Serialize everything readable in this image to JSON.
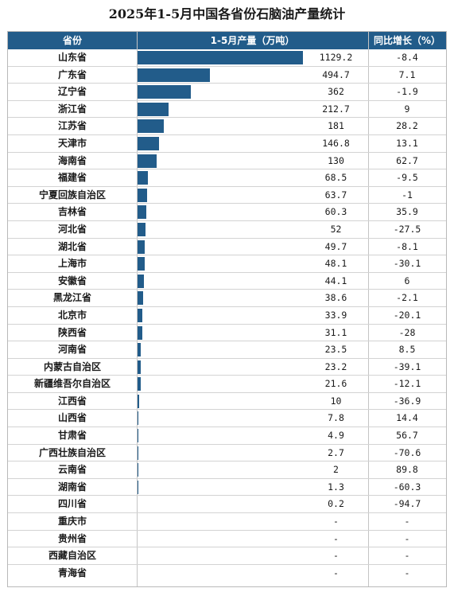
{
  "title": "2025年1-5月中国各省份石脑油产量统计",
  "header": {
    "province": "省份",
    "production": "1-5月产量（万吨）",
    "yoy": "同比增长（%）"
  },
  "colors": {
    "bar": "#225c8a",
    "header_bg": "#225c8a"
  },
  "chart_data": {
    "type": "table",
    "columns": [
      "省份",
      "1-5月产量（万吨）",
      "同比增长（%）"
    ],
    "rows": [
      {
        "province": "山东省",
        "value": "1129.2",
        "yoy": "-8.4"
      },
      {
        "province": "广东省",
        "value": "494.7",
        "yoy": "7.1"
      },
      {
        "province": "辽宁省",
        "value": "362",
        "yoy": "-1.9"
      },
      {
        "province": "浙江省",
        "value": "212.7",
        "yoy": "9"
      },
      {
        "province": "江苏省",
        "value": "181",
        "yoy": "28.2"
      },
      {
        "province": "天津市",
        "value": "146.8",
        "yoy": "13.1"
      },
      {
        "province": "海南省",
        "value": "130",
        "yoy": "62.7"
      },
      {
        "province": "福建省",
        "value": "68.5",
        "yoy": "-9.5"
      },
      {
        "province": "宁夏回族自治区",
        "value": "63.7",
        "yoy": "-1"
      },
      {
        "province": "吉林省",
        "value": "60.3",
        "yoy": "35.9"
      },
      {
        "province": "河北省",
        "value": "52",
        "yoy": "-27.5"
      },
      {
        "province": "湖北省",
        "value": "49.7",
        "yoy": "-8.1"
      },
      {
        "province": "上海市",
        "value": "48.1",
        "yoy": "-30.1"
      },
      {
        "province": "安徽省",
        "value": "44.1",
        "yoy": "6"
      },
      {
        "province": "黑龙江省",
        "value": "38.6",
        "yoy": "-2.1"
      },
      {
        "province": "北京市",
        "value": "33.9",
        "yoy": "-20.1"
      },
      {
        "province": "陕西省",
        "value": "31.1",
        "yoy": "-28"
      },
      {
        "province": "河南省",
        "value": "23.5",
        "yoy": "8.5"
      },
      {
        "province": "内蒙古自治区",
        "value": "23.2",
        "yoy": "-39.1"
      },
      {
        "province": "新疆维吾尔自治区",
        "value": "21.6",
        "yoy": "-12.1"
      },
      {
        "province": "江西省",
        "value": "10",
        "yoy": "-36.9"
      },
      {
        "province": "山西省",
        "value": "7.8",
        "yoy": "14.4"
      },
      {
        "province": "甘肃省",
        "value": "4.9",
        "yoy": "56.7"
      },
      {
        "province": "广西壮族自治区",
        "value": "2.7",
        "yoy": "-70.6"
      },
      {
        "province": "云南省",
        "value": "2",
        "yoy": "89.8"
      },
      {
        "province": "湖南省",
        "value": "1.3",
        "yoy": "-60.3"
      },
      {
        "province": "四川省",
        "value": "0.2",
        "yoy": "-94.7"
      },
      {
        "province": "重庆市",
        "value": "-",
        "yoy": "-"
      },
      {
        "province": "贵州省",
        "value": "-",
        "yoy": "-"
      },
      {
        "province": "西藏自治区",
        "value": "-",
        "yoy": "-"
      },
      {
        "province": "青海省",
        "value": "-",
        "yoy": "-"
      }
    ]
  }
}
